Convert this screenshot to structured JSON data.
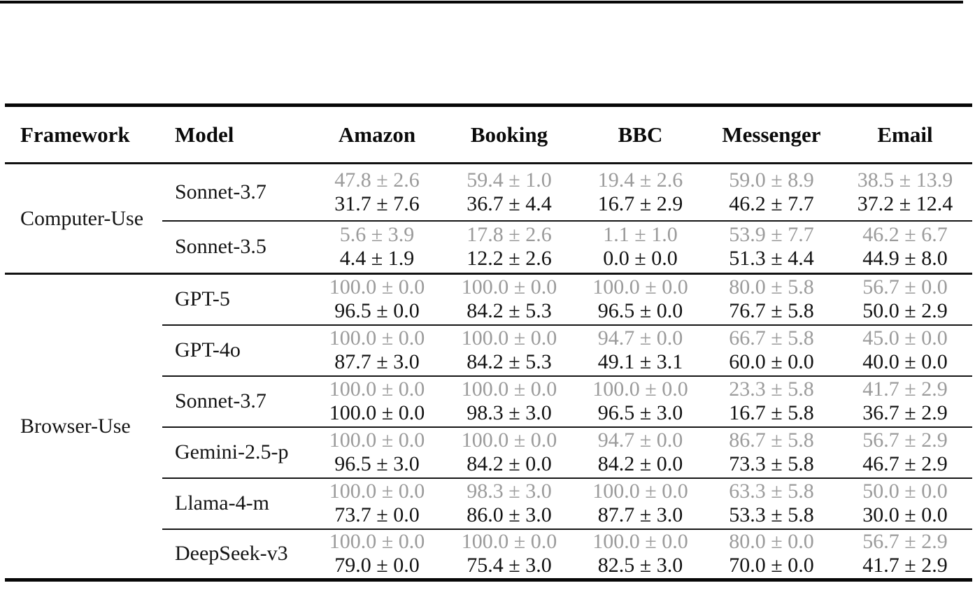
{
  "table": {
    "headers": [
      "Framework",
      "Model",
      "Amazon",
      "Booking",
      "BBC",
      "Messenger",
      "Email"
    ],
    "value_style": {
      "top_value_color": "#9b9b9b",
      "bottom_value_color": "#121212"
    },
    "groups": [
      {
        "framework": "Computer-Use",
        "rows": [
          {
            "model": "Sonnet-3.7",
            "values": [
              {
                "top": "47.8 ± 2.6",
                "bottom": "31.7 ± 7.6"
              },
              {
                "top": "59.4 ± 1.0",
                "bottom": "36.7 ± 4.4"
              },
              {
                "top": "19.4 ± 2.6",
                "bottom": "16.7 ± 2.9"
              },
              {
                "top": "59.0 ± 8.9",
                "bottom": "46.2 ± 7.7"
              },
              {
                "top": "38.5 ± 13.9",
                "bottom": "37.2 ± 12.4"
              }
            ]
          },
          {
            "model": "Sonnet-3.5",
            "values": [
              {
                "top": "5.6 ± 3.9",
                "bottom": "4.4 ± 1.9"
              },
              {
                "top": "17.8 ± 2.6",
                "bottom": "12.2 ± 2.6"
              },
              {
                "top": "1.1 ± 1.0",
                "bottom": "0.0 ± 0.0"
              },
              {
                "top": "53.9 ± 7.7",
                "bottom": "51.3 ± 4.4"
              },
              {
                "top": "46.2 ± 6.7",
                "bottom": "44.9 ± 8.0"
              }
            ]
          }
        ]
      },
      {
        "framework": "Browser-Use",
        "rows": [
          {
            "model": "GPT-5",
            "values": [
              {
                "top": "100.0 ± 0.0",
                "bottom": "96.5 ± 0.0"
              },
              {
                "top": "100.0 ± 0.0",
                "bottom": "84.2 ± 5.3"
              },
              {
                "top": "100.0 ± 0.0",
                "bottom": "96.5 ± 0.0"
              },
              {
                "top": "80.0 ± 5.8",
                "bottom": "76.7 ± 5.8"
              },
              {
                "top": "56.7 ± 0.0",
                "bottom": "50.0 ± 2.9"
              }
            ]
          },
          {
            "model": "GPT-4o",
            "values": [
              {
                "top": "100.0 ± 0.0",
                "bottom": "87.7 ± 3.0"
              },
              {
                "top": "100.0 ± 0.0",
                "bottom": "84.2 ± 5.3"
              },
              {
                "top": "94.7 ± 0.0",
                "bottom": "49.1 ± 3.1"
              },
              {
                "top": "66.7 ± 5.8",
                "bottom": "60.0 ± 0.0"
              },
              {
                "top": "45.0 ± 0.0",
                "bottom": "40.0 ± 0.0"
              }
            ]
          },
          {
            "model": "Sonnet-3.7",
            "values": [
              {
                "top": "100.0 ± 0.0",
                "bottom": "100.0 ± 0.0"
              },
              {
                "top": "100.0 ± 0.0",
                "bottom": "98.3 ± 3.0"
              },
              {
                "top": "100.0 ± 0.0",
                "bottom": "96.5 ± 3.0"
              },
              {
                "top": "23.3 ± 5.8",
                "bottom": "16.7 ± 5.8"
              },
              {
                "top": "41.7 ± 2.9",
                "bottom": "36.7 ± 2.9"
              }
            ]
          },
          {
            "model": "Gemini-2.5-p",
            "values": [
              {
                "top": "100.0 ± 0.0",
                "bottom": "96.5 ± 3.0"
              },
              {
                "top": "100.0 ± 0.0",
                "bottom": "84.2 ± 0.0"
              },
              {
                "top": "94.7 ± 0.0",
                "bottom": "84.2 ± 0.0"
              },
              {
                "top": "86.7 ± 5.8",
                "bottom": "73.3 ± 5.8"
              },
              {
                "top": "56.7 ± 2.9",
                "bottom": "46.7 ± 2.9"
              }
            ]
          },
          {
            "model": "Llama-4-m",
            "values": [
              {
                "top": "100.0 ± 0.0",
                "bottom": "73.7 ± 0.0"
              },
              {
                "top": "98.3 ± 3.0",
                "bottom": "86.0 ± 3.0"
              },
              {
                "top": "100.0 ± 0.0",
                "bottom": "87.7 ± 3.0"
              },
              {
                "top": "63.3 ± 5.8",
                "bottom": "53.3 ± 5.8"
              },
              {
                "top": "50.0 ± 0.0",
                "bottom": "30.0 ± 0.0"
              }
            ]
          },
          {
            "model": "DeepSeek-v3",
            "values": [
              {
                "top": "100.0 ± 0.0",
                "bottom": "79.0 ± 0.0"
              },
              {
                "top": "100.0 ± 0.0",
                "bottom": "75.4 ± 3.0"
              },
              {
                "top": "100.0 ± 0.0",
                "bottom": "82.5 ± 3.0"
              },
              {
                "top": "80.0 ± 0.0",
                "bottom": "70.0 ± 0.0"
              },
              {
                "top": "56.7 ± 2.9",
                "bottom": "41.7 ± 2.9"
              }
            ]
          }
        ]
      }
    ]
  }
}
